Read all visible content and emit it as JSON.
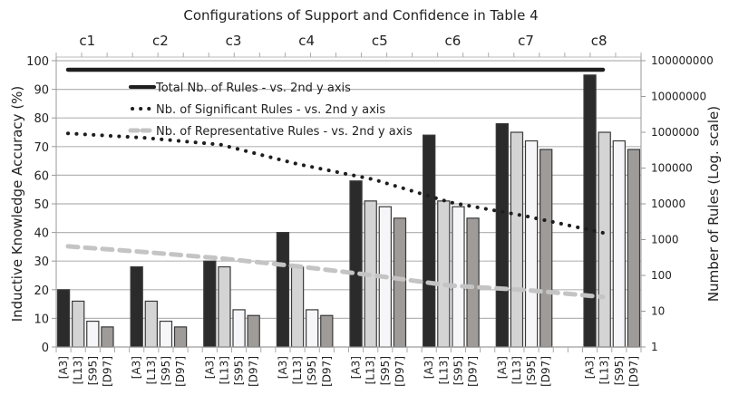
{
  "chart_data": {
    "type": "bar",
    "title": "Configurations of Support and Confidence in Table 4",
    "groups": [
      "c1",
      "c2",
      "c3",
      "c4",
      "c5",
      "c6",
      "c7",
      "c8"
    ],
    "categories": [
      "[A3]",
      "[L13]",
      "[S95]",
      "[D97]"
    ],
    "ylabel": "Inductive Knowledge Accuracy (%)",
    "y2label": "Number of Rules (Log. scale)",
    "ylim": [
      0,
      100
    ],
    "yticks": [
      0,
      10,
      20,
      30,
      40,
      50,
      60,
      70,
      80,
      90,
      100
    ],
    "y2lim": [
      1,
      100000000
    ],
    "y2scale": "log",
    "y2ticks": [
      "1",
      "10",
      "100",
      "1000",
      "10000",
      "100000",
      "1000000",
      "10000000",
      "100000000"
    ],
    "grid": true,
    "series": [
      {
        "name": "[A3]",
        "color": "#2b2b2b",
        "values": [
          20,
          28,
          30,
          40,
          58,
          74,
          78,
          95
        ]
      },
      {
        "name": "[L13]",
        "color": "#d4d4d4",
        "values": [
          16,
          16,
          28,
          28,
          51,
          51,
          75,
          75
        ]
      },
      {
        "name": "[S95]",
        "color": "#f6f6f8",
        "values": [
          9,
          9,
          13,
          13,
          49,
          49,
          72,
          72
        ]
      },
      {
        "name": "[D97]",
        "color": "#9e9b99",
        "values": [
          7,
          7,
          11,
          11,
          45,
          45,
          69,
          69
        ]
      }
    ],
    "lines": [
      {
        "name": "Total Nb. of Rules - vs. 2nd y axis",
        "style": "solid",
        "color": "#1e1e1e",
        "axis": "y2",
        "values": [
          56000000,
          56000000,
          56000000,
          56000000,
          56000000,
          56000000,
          56000000,
          56000000
        ]
      },
      {
        "name": "Nb. of Significant Rules - vs. 2nd y axis",
        "style": "dotted",
        "color": "#1e1e1e",
        "axis": "y2",
        "values": [
          930000,
          700000,
          450000,
          130000,
          48000,
          11000,
          4500,
          1550
        ]
      },
      {
        "name": "Nb. of Representative Rules - vs. 2nd y axis",
        "style": "dashed",
        "color": "#c4c4c4",
        "axis": "y2",
        "values": [
          650,
          450,
          300,
          180,
          100,
          52,
          39,
          25
        ]
      }
    ],
    "legend_position": "upper-left inside plot"
  }
}
